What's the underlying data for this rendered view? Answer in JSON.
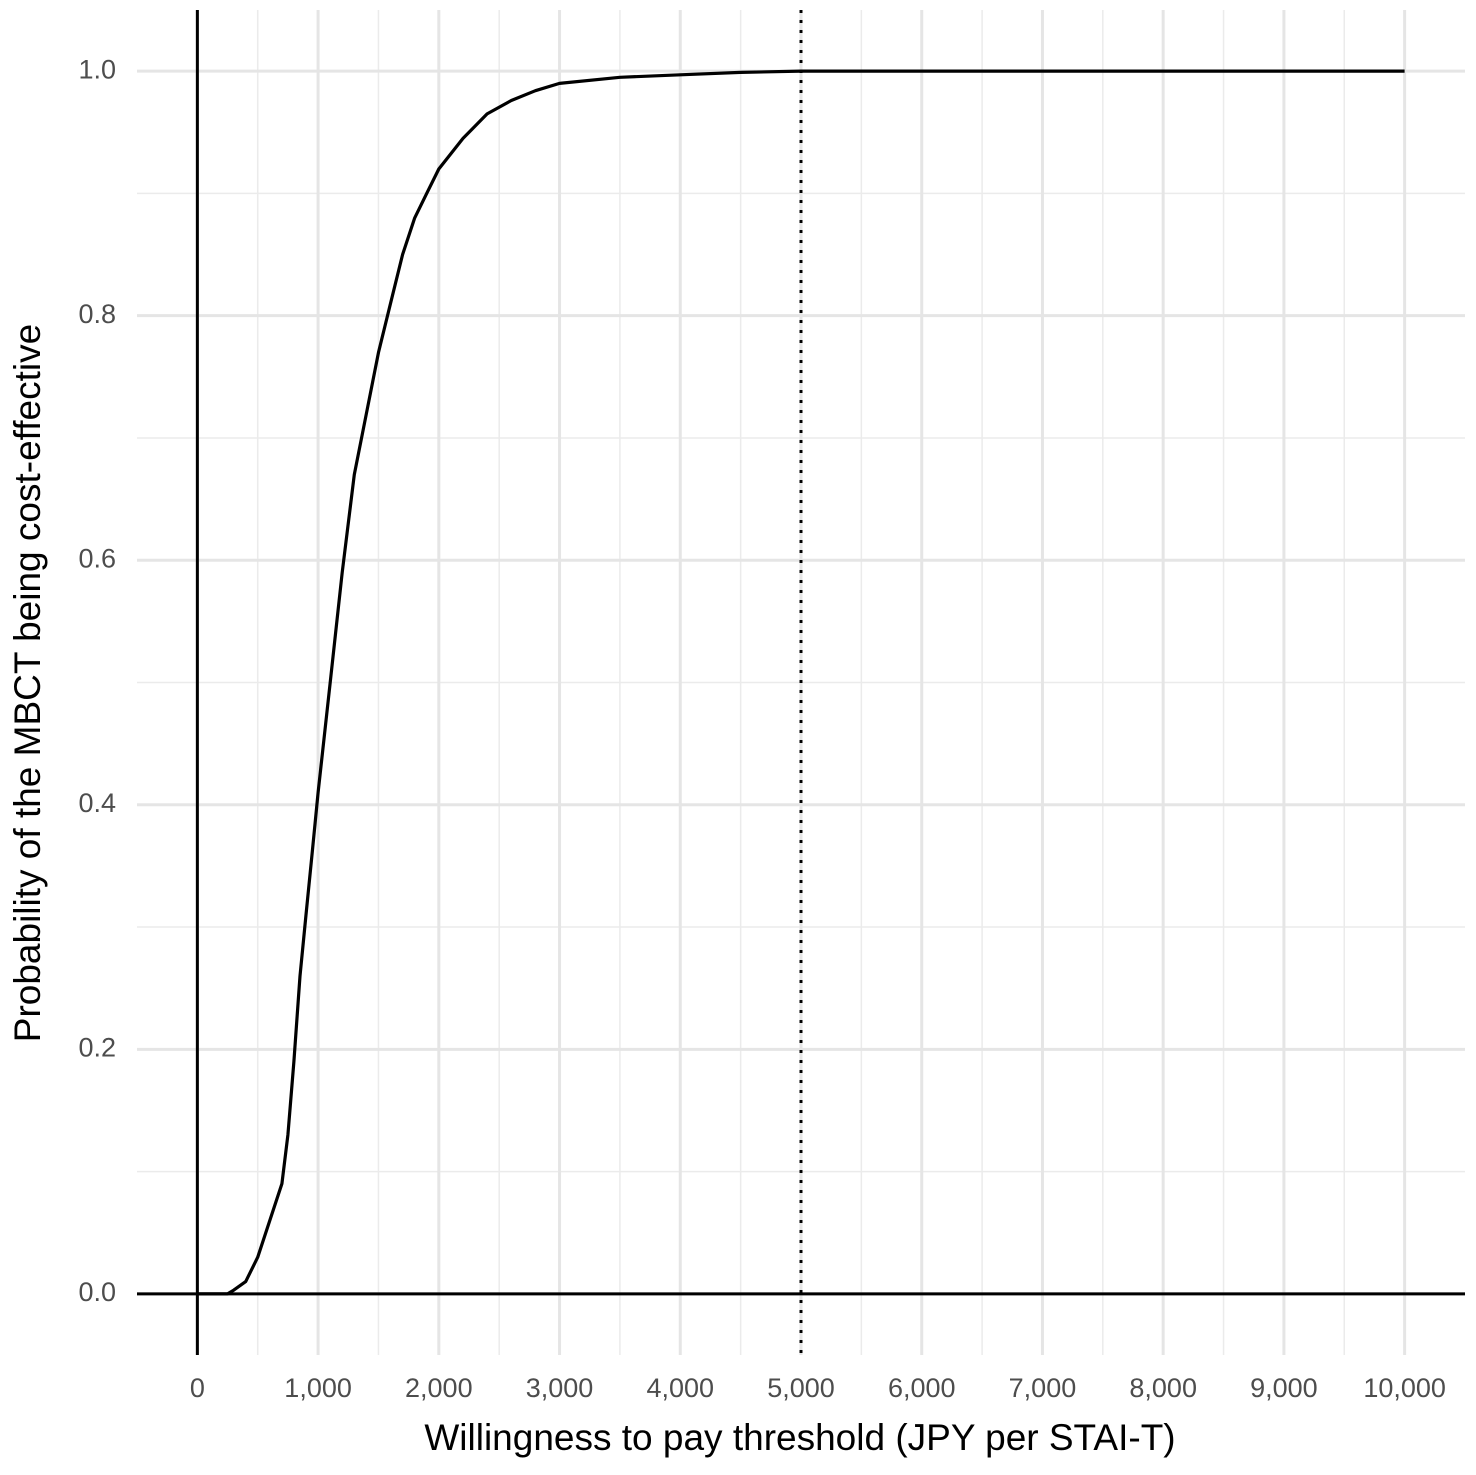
{
  "chart_data": {
    "type": "line",
    "x_label": "Willingness to pay threshold (JPY per STAI-T)",
    "y_label": "Probability of the MBCT being cost-effective",
    "x": [
      0,
      250,
      300,
      400,
      500,
      600,
      700,
      750,
      800,
      850,
      900,
      950,
      1000,
      1100,
      1200,
      1300,
      1400,
      1500,
      1600,
      1700,
      1800,
      1900,
      2000,
      2200,
      2400,
      2600,
      2800,
      3000,
      3500,
      4000,
      4500,
      5000,
      7500,
      10000
    ],
    "series": [
      {
        "color": "#000000",
        "values": [
          0,
          0,
          0.003,
          0.01,
          0.03,
          0.06,
          0.09,
          0.13,
          0.19,
          0.26,
          0.31,
          0.36,
          0.41,
          0.5,
          0.59,
          0.67,
          0.72,
          0.77,
          0.81,
          0.85,
          0.88,
          0.9,
          0.92,
          0.945,
          0.965,
          0.976,
          0.984,
          0.99,
          0.995,
          0.997,
          0.999,
          1.0,
          1.0,
          1.0
        ]
      }
    ],
    "xlim": [
      -500,
      10500
    ],
    "ylim": [
      -0.05,
      1.05
    ],
    "xticks": [
      0,
      {
        "value": 1000,
        "label": "1,000"
      },
      {
        "value": 2000,
        "label": "2,000"
      },
      {
        "value": 3000,
        "label": "3,000"
      },
      {
        "value": 4000,
        "label": "4,000"
      },
      {
        "value": 5000,
        "label": "5,000"
      },
      {
        "value": 6000,
        "label": "6,000"
      },
      {
        "value": 7000,
        "label": "7,000"
      },
      {
        "value": 8000,
        "label": "8,000"
      },
      {
        "value": 9000,
        "label": "9,000"
      },
      {
        "value": 10000,
        "label": "10,000"
      }
    ],
    "yticks": [
      {
        "value": 0,
        "label": "0.0"
      },
      0.2,
      0.4,
      0.6,
      0.8,
      {
        "value": 1,
        "label": "1.0"
      }
    ],
    "grid": true,
    "hlines": [
      {
        "value": 0,
        "style": "solid"
      }
    ],
    "vlines": [
      {
        "value": 0,
        "style": "solid"
      },
      {
        "value": 5000,
        "style": "dotted"
      }
    ]
  }
}
